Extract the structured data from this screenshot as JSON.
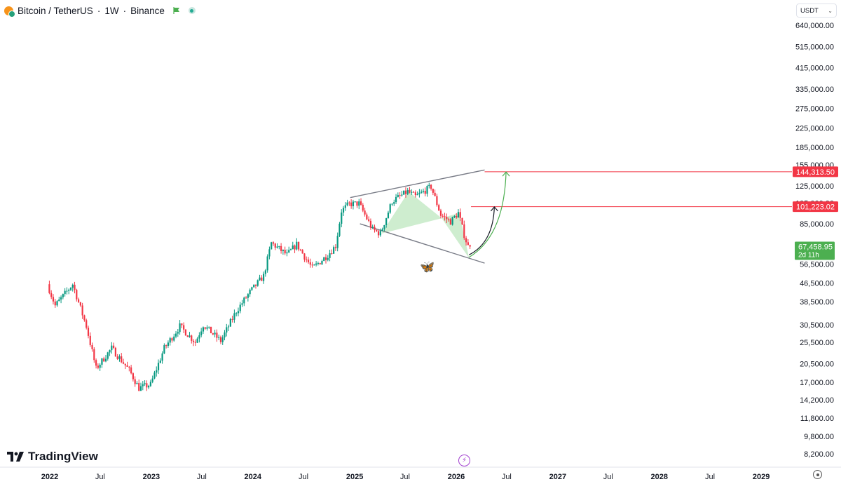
{
  "header": {
    "symbol": "Bitcoin / TetherUS",
    "interval": "1W",
    "exchange": "Binance",
    "separator": "·"
  },
  "currency_select": {
    "value": "USDT"
  },
  "brand": {
    "logo_text": "TradingView"
  },
  "colors": {
    "up": "#089981",
    "down": "#f23645",
    "pattern_fill": "#a5dea7",
    "target_line": "#f23645",
    "price_label": "#4caf50"
  },
  "icons": {
    "flag": "flag-icon",
    "status": "dot-icon",
    "pattern": "butterfly-icon",
    "bolt": "lightning-icon",
    "settings": "gear-icon"
  },
  "chart_data": {
    "type": "candlestick",
    "x_labels": [
      "2022",
      "Jul",
      "2023",
      "Jul",
      "2024",
      "Jul",
      "2025",
      "Jul",
      "2026",
      "Jul",
      "2027",
      "Jul",
      "2028",
      "Jul",
      "2029"
    ],
    "x_labels_bold": [
      "2022",
      "2023",
      "2024",
      "2025",
      "2026",
      "2027",
      "2028",
      "2029"
    ],
    "y_scale": "log",
    "y_ticks": [
      "640,000.00",
      "515,000.00",
      "415,000.00",
      "335,000.00",
      "275,000.00",
      "225,000.00",
      "185,000.00",
      "155,000.00",
      "125,000.00",
      "105,000.00",
      "85,000.00",
      "56,500.00",
      "46,500.00",
      "38,500.00",
      "30,500.00",
      "25,500.00",
      "20,500.00",
      "17,000.00",
      "14,200.00",
      "11,800.00",
      "9,800.00",
      "8,200.00"
    ],
    "y_tick_values": [
      640000,
      515000,
      415000,
      335000,
      275000,
      225000,
      185000,
      155000,
      125000,
      105000,
      85000,
      56500,
      46500,
      38500,
      30500,
      25500,
      20500,
      17000,
      14200,
      11800,
      9800,
      8200
    ],
    "price_path": [
      [
        "2021-12-27",
        46000
      ],
      [
        "2022-01-24",
        37000
      ],
      [
        "2022-03-28",
        46000
      ],
      [
        "2022-05-16",
        30000
      ],
      [
        "2022-06-20",
        19500
      ],
      [
        "2022-08-15",
        24000
      ],
      [
        "2022-10-17",
        19200
      ],
      [
        "2022-11-21",
        16000
      ],
      [
        "2023-01-02",
        16600
      ],
      [
        "2023-02-20",
        24000
      ],
      [
        "2023-04-17",
        30000
      ],
      [
        "2023-06-12",
        25500
      ],
      [
        "2023-07-10",
        30500
      ],
      [
        "2023-09-11",
        25800
      ],
      [
        "2023-11-06",
        35000
      ],
      [
        "2023-12-25",
        42500
      ],
      [
        "2024-02-12",
        50000
      ],
      [
        "2024-03-11",
        70000
      ],
      [
        "2024-05-06",
        62000
      ],
      [
        "2024-06-10",
        69000
      ],
      [
        "2024-08-05",
        54000
      ],
      [
        "2024-09-30",
        62000
      ],
      [
        "2024-10-28",
        68000
      ],
      [
        "2024-11-18",
        97000
      ],
      [
        "2024-12-16",
        104000
      ],
      [
        "2025-01-20",
        104500
      ],
      [
        "2025-03-10",
        80000
      ],
      [
        "2025-04-07",
        77000
      ],
      [
        "2025-05-19",
        107000
      ],
      [
        "2025-07-14",
        118000
      ],
      [
        "2025-08-11",
        112000
      ],
      [
        "2025-10-06",
        124000
      ],
      [
        "2025-11-10",
        93000
      ],
      [
        "2025-12-15",
        87000
      ],
      [
        "2026-01-12",
        95000
      ],
      [
        "2026-02-02",
        76000
      ],
      [
        "2026-02-16",
        67458.95
      ]
    ],
    "levels": [
      {
        "label": "144,313.50",
        "value": 144313.5
      },
      {
        "label": "101,223.02",
        "value": 101223.02
      }
    ],
    "last_price": {
      "label": "67,458.95",
      "countdown": "2d 11h",
      "value": 67458.95
    },
    "channel": {
      "upper": [
        [
          "2024-12-16",
          111000
        ],
        [
          "2026-04-13",
          147000
        ]
      ],
      "lower": [
        [
          "2025-01-20",
          85000
        ],
        [
          "2026-04-13",
          57000
        ]
      ]
    },
    "butterfly_pattern": [
      [
        "2025-04-07",
        77000
      ],
      [
        "2025-07-14",
        118000
      ],
      [
        "2025-11-10",
        90000
      ],
      [
        "2026-01-12",
        95000
      ],
      [
        "2026-02-16",
        60000
      ]
    ],
    "projections": [
      {
        "color": "#131722",
        "from": [
          "2026-02-16",
          62000
        ],
        "to": [
          "2026-05-18",
          101000
        ]
      },
      {
        "color": "#4caf50",
        "from": [
          "2026-02-16",
          60500
        ],
        "to": [
          "2026-06-29",
          144000
        ]
      }
    ],
    "grid": false,
    "legend": "none"
  }
}
